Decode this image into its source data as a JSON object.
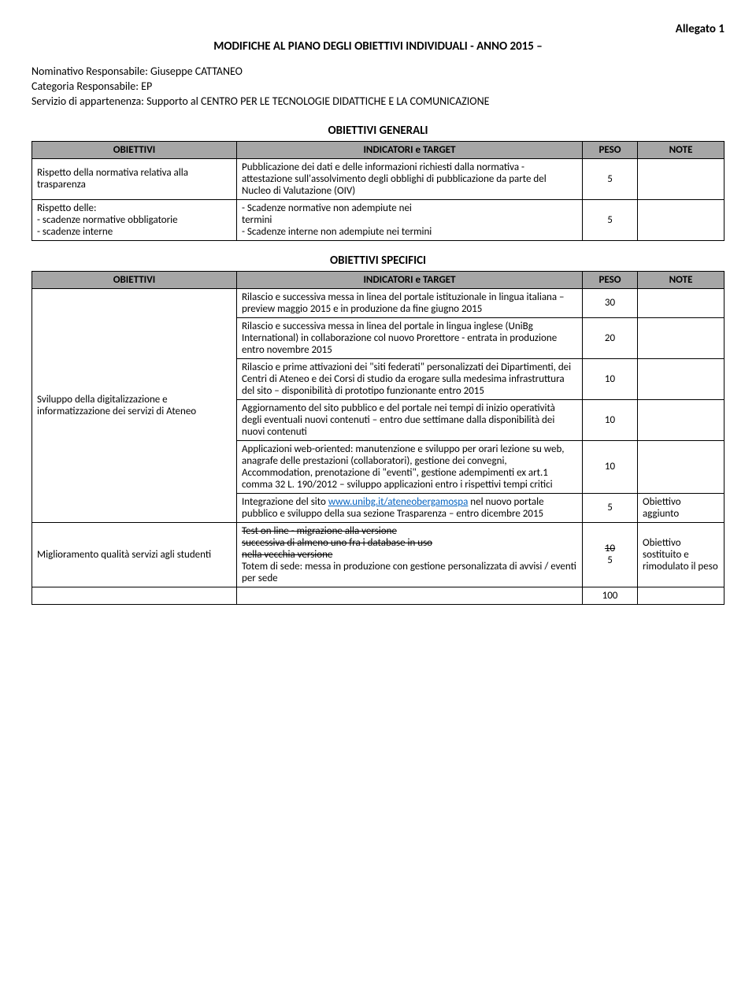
{
  "header": {
    "allegato": "Allegato 1",
    "title": "MODIFICHE AL PIANO DEGLI OBIETTIVI INDIVIDUALI - ANNO 2015 –",
    "nominativo_label": "Nominativo Responsabile: Giuseppe CATTANEO",
    "categoria_label": "Categoria Responsabile: EP",
    "servizio_label": "Servizio di appartenenza: Supporto al CENTRO PER LE TECNOLOGIE DIDATTICHE E LA COMUNICAZIONE"
  },
  "section_generali": {
    "title": "OBIETTIVI GENERALI",
    "cols": {
      "c1": "OBIETTIVI",
      "c2": "INDICATORI e TARGET",
      "c3": "PESO",
      "c4": "NOTE"
    },
    "rows": [
      {
        "obj": "Rispetto della normativa relativa alla trasparenza",
        "ind": "Pubblicazione dei dati e delle informazioni richiesti dalla normativa - attestazione sull'assolvimento degli obblighi di pubblicazione da parte del Nucleo di Valutazione (OIV)",
        "peso": "5",
        "note": ""
      },
      {
        "obj_lines": [
          "Rispetto delle:",
          "- scadenze normative obbligatorie",
          "- scadenze interne"
        ],
        "ind_lines": [
          "- Scadenze normative non adempiute nei",
          "  termini",
          "- Scadenze interne non adempiute nei termini"
        ],
        "peso": "5",
        "note": ""
      }
    ]
  },
  "section_specifici": {
    "title": "OBIETTIVI SPECIFICI",
    "cols": {
      "c1": "OBIETTIVI",
      "c2": "INDICATORI e TARGET",
      "c3": "PESO",
      "c4": "NOTE"
    },
    "sviluppo_obj": "Sviluppo della digitalizzazione e informatizzazione dei servizi di Ateneo",
    "sviluppo_rows": [
      {
        "ind": "Rilascio e successiva messa in linea del portale istituzionale in lingua italiana – preview maggio 2015 e in produzione da fine giugno 2015",
        "peso": "30",
        "note": ""
      },
      {
        "ind": "Rilascio e successiva messa in linea del portale in lingua inglese (UniBg International) in collaborazione col nuovo Prorettore - entrata in produzione entro novembre 2015",
        "peso": "20",
        "note": ""
      },
      {
        "ind": "Rilascio e prime attivazioni dei \"siti federati\" personalizzati dei Dipartimenti, dei Centri di Ateneo e dei Corsi di studio da erogare sulla medesima infrastruttura del sito – disponibilità di prototipo funzionante entro 2015",
        "peso": "10",
        "note": ""
      },
      {
        "ind": "Aggiornamento del sito pubblico e del portale nei tempi di inizio operatività degli eventuali nuovi contenuti – entro due settimane dalla disponibilità dei nuovi contenuti",
        "peso": "10",
        "note": ""
      },
      {
        "ind": "Applicazioni web-oriented: manutenzione e sviluppo per orari lezione su web, anagrafe delle prestazioni (collaboratori), gestione dei convegni, Accommodation, prenotazione di \"eventi\", gestione adempimenti ex art.1 comma 32 L. 190/2012 – sviluppo applicazioni entro i rispettivi tempi critici",
        "peso": "10",
        "note": ""
      }
    ],
    "integrazione": {
      "pre_text": "Integrazione del sito ",
      "link_text": "www.unibg.it/ateneobergamospa",
      "post_text": " nel nuovo portale pubblico e sviluppo della sua sezione Trasparenza – entro dicembre 2015",
      "peso": "5",
      "note": "Obiettivo aggiunto"
    },
    "miglioramento": {
      "obj": "Miglioramento qualità servizi agli studenti",
      "struck_lines": [
        "Test on line - migrazione alla versione",
        "successiva di almeno uno fra i database in uso",
        "nella vecchia versione"
      ],
      "plain_text": "Totem di sede: messa in produzione con gestione personalizzata di avvisi / eventi per sede",
      "peso_struck": "10",
      "peso_plain": "5",
      "note": "Obiettivo sostituito e rimodulato il peso"
    },
    "total": "100"
  },
  "colors": {
    "header_bg": "#a6a6a6",
    "link": "#0563c1",
    "text": "#000000",
    "bg": "#ffffff"
  }
}
